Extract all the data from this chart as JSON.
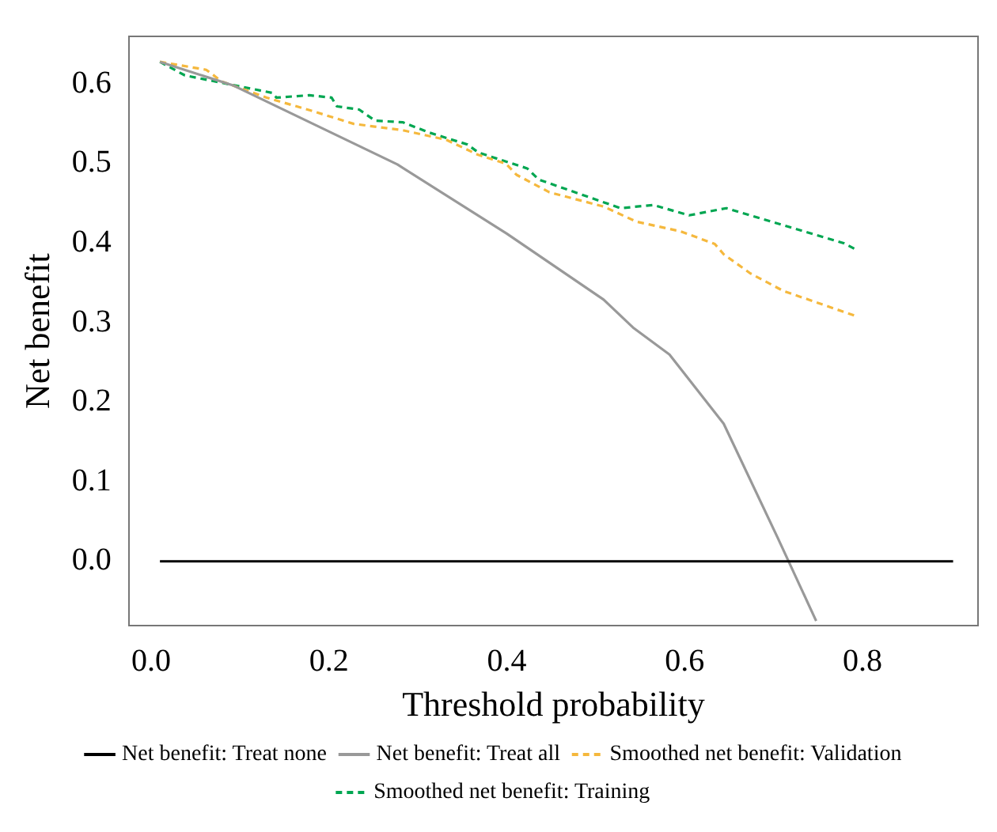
{
  "chart_data": {
    "type": "line",
    "xlabel": "Threshold probability",
    "ylabel": "Net benefit",
    "xlim": [
      -0.025,
      0.93
    ],
    "ylim": [
      -0.081,
      0.66
    ],
    "xticks": [
      {
        "value": 0,
        "label": "0.0"
      },
      0.2,
      0.4,
      0.6,
      0.8
    ],
    "yticks": [
      {
        "value": 0,
        "label": "0.0"
      },
      0.1,
      0.2,
      0.3,
      0.4,
      0.5,
      0.6
    ],
    "grid": false,
    "legend": "bottom",
    "marker": "none",
    "series": [
      {
        "name": "Net benefit: Treat none",
        "color": "#000000",
        "line_style": "solid",
        "x": [
          0.01,
          0.902
        ],
        "values": [
          0,
          0
        ]
      },
      {
        "name": "Net benefit: Treat all",
        "color": "#999999",
        "line_style": "solid",
        "x": [
          0.01,
          0.093,
          0.277,
          0.4,
          0.509,
          0.543,
          0.583,
          0.644,
          0.705,
          0.748
        ],
        "values": [
          0.628,
          0.598,
          0.499,
          0.412,
          0.329,
          0.293,
          0.26,
          0.173,
          0.029,
          -0.075
        ]
      },
      {
        "name": "Smoothed net benefit: Validation",
        "color": "#f5b83d",
        "line_style": "dashed",
        "x": [
          0.01,
          0.062,
          0.08,
          0.13,
          0.179,
          0.228,
          0.283,
          0.332,
          0.368,
          0.399,
          0.411,
          0.448,
          0.509,
          0.546,
          0.595,
          0.634,
          0.644,
          0.674,
          0.711,
          0.791
        ],
        "values": [
          0.628,
          0.618,
          0.603,
          0.583,
          0.567,
          0.55,
          0.542,
          0.53,
          0.511,
          0.5,
          0.486,
          0.464,
          0.446,
          0.427,
          0.415,
          0.399,
          0.386,
          0.362,
          0.34,
          0.309
        ]
      },
      {
        "name": "Smoothed net benefit: Training",
        "color": "#00a651",
        "line_style": "dashed",
        "x": [
          0.01,
          0.038,
          0.087,
          0.136,
          0.141,
          0.178,
          0.203,
          0.209,
          0.234,
          0.252,
          0.283,
          0.313,
          0.356,
          0.368,
          0.423,
          0.436,
          0.528,
          0.565,
          0.605,
          0.647,
          0.779,
          0.791
        ],
        "values": [
          0.628,
          0.611,
          0.6,
          0.589,
          0.583,
          0.586,
          0.583,
          0.572,
          0.568,
          0.554,
          0.552,
          0.539,
          0.524,
          0.514,
          0.494,
          0.48,
          0.444,
          0.448,
          0.435,
          0.444,
          0.4,
          0.393
        ]
      }
    ]
  }
}
